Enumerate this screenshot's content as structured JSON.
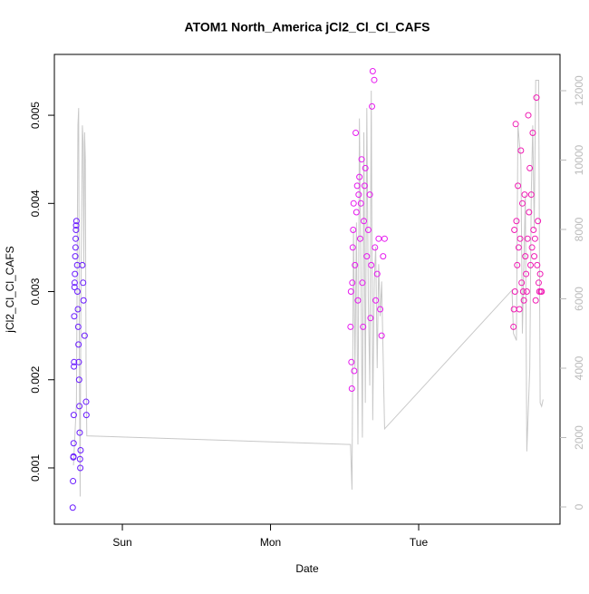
{
  "chart_data": {
    "type": "scatter",
    "title": "ATOM1 North_America jCl2_Cl_Cl_CAFS",
    "x_label": "Date",
    "y_label": "jCl2_Cl_Cl_CAFS",
    "xlim": [
      -0.459,
      2.954
    ],
    "xticks": [
      {
        "value": 0,
        "label": "Sun"
      },
      {
        "value": 1,
        "label": "Mon"
      },
      {
        "value": 2,
        "label": "Tue"
      }
    ],
    "ylim": [
      0.000362,
      0.00569
    ],
    "yticks": [
      0.001,
      0.002,
      0.003,
      0.004,
      0.005
    ],
    "y2lim": [
      -497,
      13046
    ],
    "y2ticks": [
      0,
      2000,
      4000,
      6000,
      8000,
      10000,
      12000
    ],
    "series": [
      {
        "color": "#6a1bff",
        "x": [
          -0.335,
          -0.333,
          -0.331,
          -0.33,
          -0.329,
          -0.328,
          -0.327,
          -0.326,
          -0.325,
          -0.323,
          -0.322,
          -0.32,
          -0.318,
          -0.316,
          -0.315,
          -0.313,
          -0.312,
          -0.31,
          -0.305,
          -0.303,
          -0.3,
          -0.298,
          -0.296,
          -0.294,
          -0.292,
          -0.29,
          -0.288,
          -0.286,
          -0.284,
          -0.282,
          -0.27,
          -0.265,
          -0.262,
          -0.255,
          -0.245,
          -0.243
        ],
        "values": [
          0.00055,
          0.00085,
          0.00112,
          0.00113,
          0.00128,
          0.0016,
          0.00215,
          0.0022,
          0.00272,
          0.00305,
          0.0031,
          0.0032,
          0.0034,
          0.0035,
          0.0036,
          0.0037,
          0.00375,
          0.0038,
          0.0033,
          0.003,
          0.0028,
          0.0026,
          0.0024,
          0.0022,
          0.002,
          0.0017,
          0.0014,
          0.0011,
          0.001,
          0.0012,
          0.0033,
          0.0031,
          0.0029,
          0.0025,
          0.00175,
          0.0016
        ]
      },
      {
        "color": "#e619ef",
        "x": [
          1.54,
          1.543,
          1.546,
          1.549,
          1.552,
          1.555,
          1.558,
          1.561,
          1.565,
          1.57,
          1.575,
          1.58,
          1.585,
          1.59,
          1.595,
          1.6,
          1.605,
          1.61,
          1.615,
          1.62,
          1.625,
          1.63,
          1.635,
          1.64,
          1.65,
          1.66,
          1.67,
          1.675,
          1.68,
          1.685,
          1.69,
          1.7,
          1.705,
          1.71,
          1.72,
          1.73,
          1.74,
          1.75,
          1.76,
          1.77
        ],
        "values": [
          0.0026,
          0.003,
          0.0022,
          0.0019,
          0.0031,
          0.0035,
          0.0037,
          0.004,
          0.0021,
          0.0033,
          0.0048,
          0.0039,
          0.0042,
          0.0029,
          0.0041,
          0.0043,
          0.0036,
          0.004,
          0.0045,
          0.0031,
          0.0026,
          0.0038,
          0.0042,
          0.0044,
          0.0034,
          0.0037,
          0.0041,
          0.0027,
          0.0033,
          0.0051,
          0.0055,
          0.0054,
          0.0035,
          0.0029,
          0.0032,
          0.0036,
          0.0028,
          0.0025,
          0.0034,
          0.0036
        ]
      },
      {
        "color": "#f01cb4",
        "x": [
          2.64,
          2.643,
          2.646,
          2.65,
          2.655,
          2.66,
          2.665,
          2.67,
          2.675,
          2.68,
          2.685,
          2.69,
          2.695,
          2.7,
          2.705,
          2.71,
          2.715,
          2.72,
          2.725,
          2.73,
          2.735,
          2.74,
          2.745,
          2.75,
          2.755,
          2.76,
          2.765,
          2.77,
          2.775,
          2.78,
          2.785,
          2.79,
          2.795,
          2.8,
          2.805,
          2.81,
          2.815,
          2.82,
          2.825,
          2.83
        ],
        "values": [
          0.0026,
          0.0028,
          0.0037,
          0.003,
          0.0049,
          0.0038,
          0.0033,
          0.0042,
          0.0035,
          0.0028,
          0.0036,
          0.0046,
          0.0031,
          0.004,
          0.003,
          0.0029,
          0.0041,
          0.0034,
          0.0032,
          0.003,
          0.0036,
          0.005,
          0.0039,
          0.0044,
          0.0033,
          0.0041,
          0.0035,
          0.0048,
          0.0037,
          0.0034,
          0.0036,
          0.0029,
          0.0052,
          0.0033,
          0.0038,
          0.0031,
          0.003,
          0.0032,
          0.003,
          0.003
        ]
      },
      {
        "type": "line",
        "axis": "y2",
        "color": "#c8c8c8",
        "x": [
          -0.33,
          -0.31,
          -0.3,
          -0.295,
          -0.29,
          -0.285,
          -0.28,
          -0.27,
          -0.265,
          -0.26,
          -0.255,
          -0.25,
          -0.245,
          -0.24,
          1.54,
          1.55,
          1.56,
          1.57,
          1.58,
          1.59,
          1.6,
          1.61,
          1.62,
          1.63,
          1.64,
          1.65,
          1.66,
          1.67,
          1.68,
          1.69,
          1.7,
          1.71,
          1.72,
          1.73,
          1.74,
          1.75,
          1.77,
          2.63,
          2.64,
          2.66,
          2.67,
          2.69,
          2.7,
          2.72,
          2.73,
          2.75,
          2.76,
          2.77,
          2.78,
          2.79,
          2.81,
          2.82,
          2.83,
          2.84
        ],
        "values": [
          1200,
          3000,
          11000,
          11500,
          4000,
          300,
          6000,
          11000,
          10500,
          7000,
          10800,
          10000,
          4000,
          2050,
          1800,
          500,
          8000,
          4000,
          8200,
          1800,
          11200,
          7000,
          2000,
          10800,
          3000,
          11500,
          6000,
          3500,
          12000,
          2500,
          6500,
          7500,
          4000,
          7000,
          5500,
          6500,
          2250,
          6250,
          5000,
          4800,
          11000,
          10000,
          5000,
          9000,
          1600,
          4000,
          9000,
          11000,
          8000,
          12300,
          12300,
          3000,
          2900,
          3100
        ]
      }
    ]
  }
}
